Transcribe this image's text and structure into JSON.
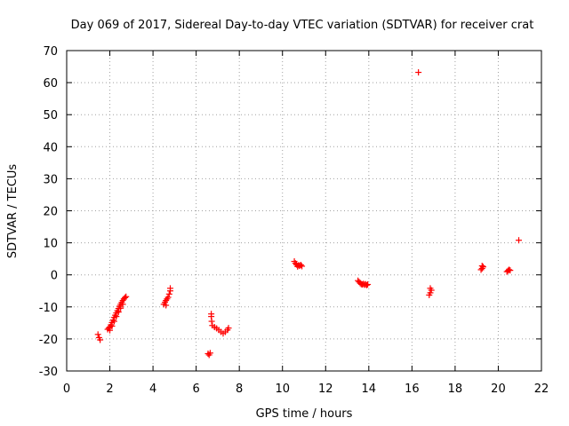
{
  "chart_data": {
    "type": "scatter",
    "title": "Day 069 of 2017, Sidereal Day-to-day VTEC variation (SDTVAR) for receiver crat",
    "xlabel": "GPS time / hours",
    "ylabel": "SDTVAR / TECUs",
    "xlim": [
      0,
      22
    ],
    "ylim": [
      -30,
      70
    ],
    "xticks": [
      0,
      2,
      4,
      6,
      8,
      10,
      12,
      14,
      16,
      18,
      20,
      22
    ],
    "yticks": [
      -30,
      -20,
      -10,
      0,
      10,
      20,
      30,
      40,
      50,
      60,
      70
    ],
    "grid": true,
    "marker": "+",
    "color": "#ff0000",
    "series": [
      {
        "name": "SDTVAR",
        "points": [
          [
            1.45,
            -18.6
          ],
          [
            1.5,
            -19.6
          ],
          [
            1.55,
            -20.3
          ],
          [
            1.9,
            -17.0
          ],
          [
            1.95,
            -16.6
          ],
          [
            2.0,
            -16.3
          ],
          [
            2.05,
            -15.6
          ],
          [
            2.1,
            -14.9
          ],
          [
            2.15,
            -14.1
          ],
          [
            2.2,
            -13.3
          ],
          [
            2.25,
            -12.6
          ],
          [
            2.3,
            -11.9
          ],
          [
            2.35,
            -11.2
          ],
          [
            2.4,
            -10.5
          ],
          [
            2.45,
            -9.8
          ],
          [
            2.5,
            -9.2
          ],
          [
            2.55,
            -8.6
          ],
          [
            2.6,
            -8.0
          ],
          [
            2.65,
            -7.5
          ],
          [
            2.7,
            -7.1
          ],
          [
            2.75,
            -6.8
          ],
          [
            2.0,
            -17.3
          ],
          [
            2.1,
            -16.0
          ],
          [
            2.2,
            -14.5
          ],
          [
            2.3,
            -13.0
          ],
          [
            2.4,
            -11.6
          ],
          [
            2.5,
            -10.4
          ],
          [
            2.6,
            -9.2
          ],
          [
            4.5,
            -9.2
          ],
          [
            4.55,
            -8.6
          ],
          [
            4.6,
            -8.0
          ],
          [
            4.65,
            -7.5
          ],
          [
            4.7,
            -7.0
          ],
          [
            4.75,
            -6.0
          ],
          [
            4.8,
            -5.0
          ],
          [
            4.8,
            -4.2
          ],
          [
            4.6,
            -9.5
          ],
          [
            6.55,
            -24.6
          ],
          [
            6.6,
            -25.0
          ],
          [
            6.65,
            -24.4
          ],
          [
            6.7,
            -12.2
          ],
          [
            6.7,
            -13.0
          ],
          [
            6.72,
            -14.5
          ],
          [
            6.75,
            -15.8
          ],
          [
            6.85,
            -16.3
          ],
          [
            6.95,
            -16.7
          ],
          [
            7.05,
            -17.2
          ],
          [
            7.15,
            -17.8
          ],
          [
            7.25,
            -18.3
          ],
          [
            7.35,
            -17.8
          ],
          [
            7.45,
            -17.2
          ],
          [
            7.5,
            -16.6
          ],
          [
            10.55,
            4.2
          ],
          [
            10.6,
            3.6
          ],
          [
            10.65,
            3.2
          ],
          [
            10.7,
            2.6
          ],
          [
            10.75,
            3.0
          ],
          [
            10.8,
            2.8
          ],
          [
            10.85,
            3.1
          ],
          [
            10.9,
            2.7
          ],
          [
            13.5,
            -1.8
          ],
          [
            13.55,
            -2.2
          ],
          [
            13.6,
            -2.6
          ],
          [
            13.65,
            -2.9
          ],
          [
            13.7,
            -3.0
          ],
          [
            13.75,
            -2.8
          ],
          [
            13.8,
            -3.1
          ],
          [
            13.85,
            -2.9
          ],
          [
            13.9,
            -3.2
          ],
          [
            13.95,
            -3.0
          ],
          [
            16.3,
            63.2
          ],
          [
            16.8,
            -6.3
          ],
          [
            16.85,
            -5.6
          ],
          [
            16.9,
            -4.8
          ],
          [
            16.85,
            -4.2
          ],
          [
            19.2,
            1.6
          ],
          [
            19.25,
            2.0
          ],
          [
            19.3,
            2.5
          ],
          [
            19.25,
            2.8
          ],
          [
            20.4,
            1.0
          ],
          [
            20.45,
            1.3
          ],
          [
            20.5,
            1.6
          ],
          [
            20.55,
            1.4
          ],
          [
            20.95,
            10.8
          ]
        ]
      }
    ]
  }
}
